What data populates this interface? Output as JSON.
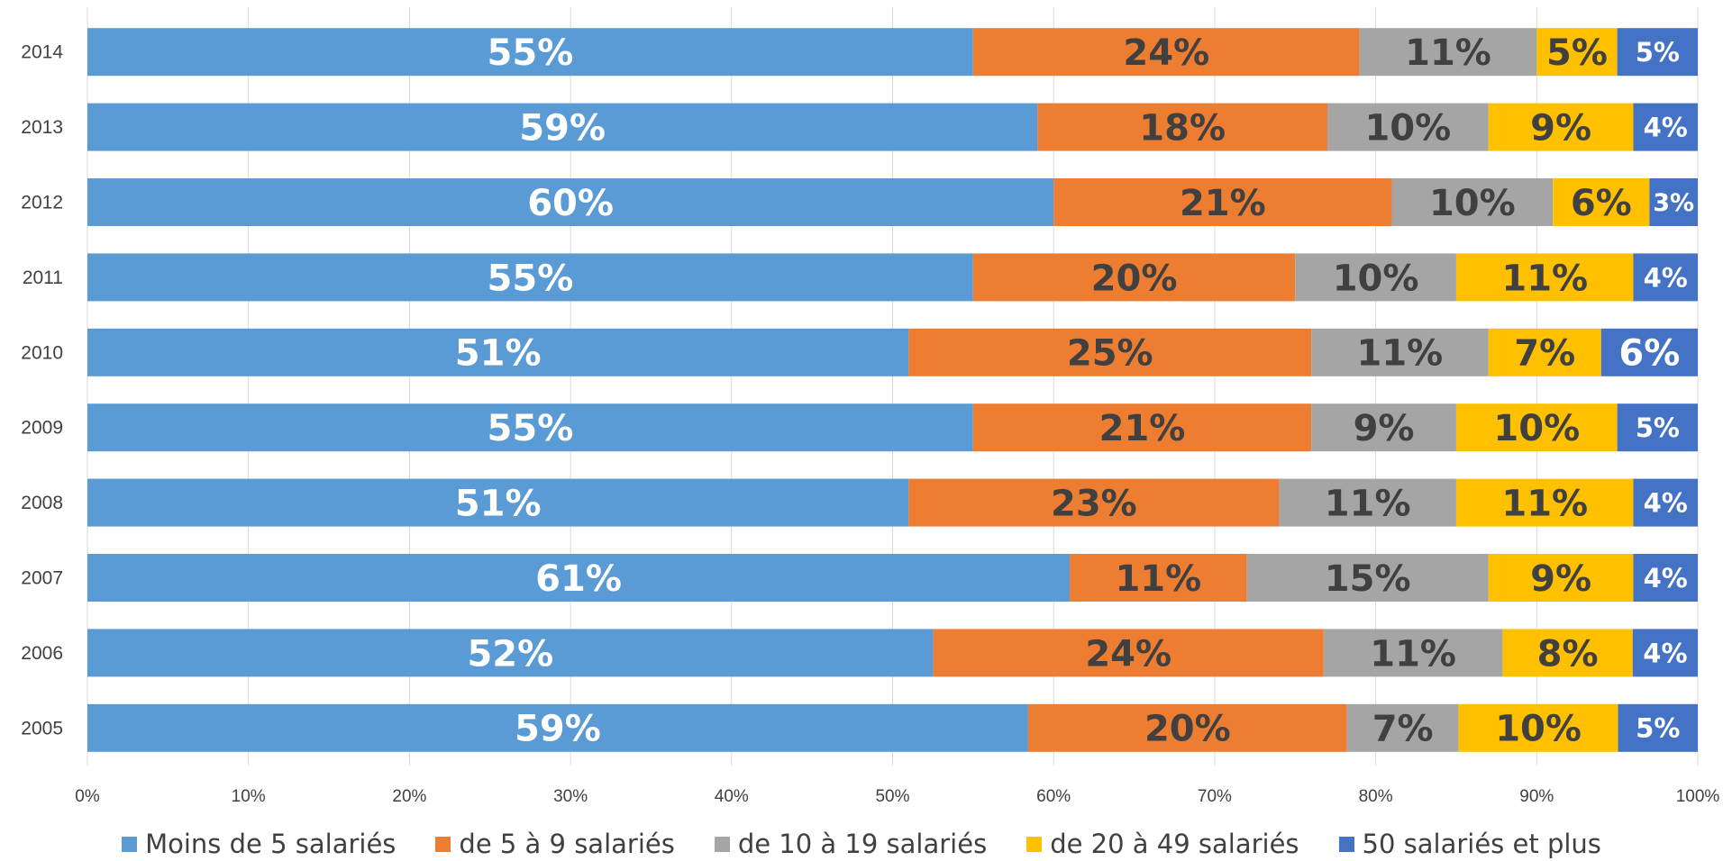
{
  "chart_data": {
    "type": "bar",
    "orientation": "horizontal",
    "stacked": "percent",
    "categories": [
      "2014",
      "2013",
      "2012",
      "2011",
      "2010",
      "2009",
      "2008",
      "2007",
      "2006",
      "2005"
    ],
    "series": [
      {
        "name": "Moins de 5 salariés",
        "color": "#5B9BD5",
        "label_color": "#ffffff",
        "values": [
          55,
          59,
          60,
          55,
          51,
          55,
          51,
          61,
          52,
          59
        ]
      },
      {
        "name": "de 5 à 9 salariés",
        "color": "#ED7D31",
        "label_color": "#404040",
        "values": [
          24,
          18,
          21,
          20,
          25,
          21,
          23,
          11,
          24,
          20
        ]
      },
      {
        "name": "de 10 à 19 salariés",
        "color": "#A5A5A5",
        "label_color": "#404040",
        "values": [
          11,
          10,
          10,
          10,
          11,
          9,
          11,
          15,
          11,
          7
        ]
      },
      {
        "name": "de 20 à 49 salariés",
        "color": "#FFC000",
        "label_color": "#404040",
        "values": [
          5,
          9,
          6,
          11,
          7,
          10,
          11,
          9,
          8,
          10
        ]
      },
      {
        "name": "50 salariés et plus",
        "color": "#4472C4",
        "label_color": "#ffffff",
        "values": [
          5,
          4,
          3,
          4,
          6,
          5,
          4,
          4,
          4,
          5
        ]
      }
    ],
    "data_labels": [
      [
        "55%",
        "59%",
        "60%",
        "55%",
        "51%",
        "55%",
        "51%",
        "61%",
        "52%",
        "59%"
      ],
      [
        "24%",
        "18%",
        "21%",
        "20%",
        "25%",
        "21%",
        "23%",
        "11%",
        "24%",
        "20%"
      ],
      [
        "11%",
        "10%",
        "10%",
        "10%",
        "11%",
        "9%",
        "11%",
        "15%",
        "11%",
        "7%"
      ],
      [
        "5%",
        "9%",
        "6%",
        "11%",
        "7%",
        "10%",
        "11%",
        "9%",
        "8%",
        "10%"
      ],
      [
        "5%",
        "4%",
        "3%",
        "4%",
        "6%",
        "5%",
        "4%",
        "4%",
        "4%",
        "5%"
      ]
    ],
    "x_ticks": [
      "0%",
      "10%",
      "20%",
      "30%",
      "40%",
      "50%",
      "60%",
      "70%",
      "80%",
      "90%",
      "100%"
    ],
    "xlim": [
      0,
      100
    ],
    "grid": true,
    "legend_position": "bottom"
  }
}
